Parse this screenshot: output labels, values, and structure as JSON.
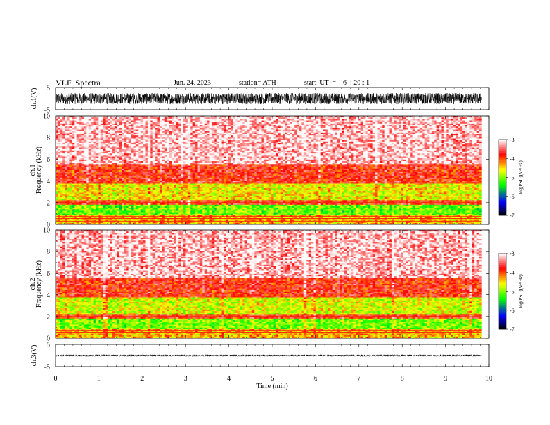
{
  "header": {
    "title": "VLF  Spectra",
    "date": "Jun. 24, 2023",
    "station": "station= ATH",
    "start": "start  UT  =    6  : 20 : 1"
  },
  "chart_data": [
    {
      "type": "line",
      "panel": "ch1-waveform",
      "ylabel": "ch.1(V)",
      "ylim": [
        -5,
        5
      ],
      "yticks": [
        "5",
        "-5"
      ],
      "description_values": {
        "amplitude_range": [
          -2.5,
          2.5
        ]
      }
    },
    {
      "type": "heatmap",
      "panel": "ch1-spectrogram",
      "ylabel": "ch.1 Frequency  (kHz)",
      "ylim": [
        0,
        10
      ],
      "yticks": [
        "10",
        "8",
        "6",
        "4",
        "2",
        "0"
      ],
      "colorbar": {
        "label": "log(PSD)(V²/Hz)",
        "range": [
          -7,
          -3
        ],
        "ticks": [
          "-3",
          "-4",
          "-5",
          "-6",
          "-7"
        ]
      },
      "bands": [
        {
          "from": 5.6,
          "to": 10.0,
          "level": -3.2
        },
        {
          "from": 3.8,
          "to": 5.6,
          "level": -3.8
        },
        {
          "from": 2.2,
          "to": 3.8,
          "level": -4.6
        },
        {
          "from": 1.8,
          "to": 2.2,
          "level": -3.8
        },
        {
          "from": 0.9,
          "to": 1.8,
          "level": -5.1
        },
        {
          "from": 0.0,
          "to": 0.9,
          "level": -4.4
        }
      ]
    },
    {
      "type": "heatmap",
      "panel": "ch2-spectrogram",
      "ylabel": "ch.2 Frequency  (kHz)",
      "ylim": [
        0,
        10
      ],
      "yticks": [
        "10",
        "8",
        "6",
        "4",
        "2",
        "0"
      ],
      "colorbar": {
        "label": "log(PSD)(V²/Hz)",
        "range": [
          -7,
          -3
        ],
        "ticks": [
          "-3",
          "-4",
          "-5",
          "-6",
          "-7"
        ]
      },
      "bands": [
        {
          "from": 5.6,
          "to": 10.0,
          "level": -3.2
        },
        {
          "from": 3.8,
          "to": 5.6,
          "level": -3.8
        },
        {
          "from": 2.2,
          "to": 3.8,
          "level": -4.7
        },
        {
          "from": 1.8,
          "to": 2.2,
          "level": -3.8
        },
        {
          "from": 0.9,
          "to": 1.8,
          "level": -5.0
        },
        {
          "from": 0.0,
          "to": 0.9,
          "level": -4.4
        }
      ]
    },
    {
      "type": "line",
      "panel": "ch3-waveform",
      "ylabel": "ch.3(V)",
      "ylim": [
        -5,
        5
      ],
      "yticks": [
        "5",
        "-5"
      ],
      "description_values": {
        "amplitude_range": [
          -0.4,
          0.4
        ],
        "offset": 0
      }
    }
  ],
  "xaxis": {
    "label": "Time  (min)",
    "xlim": [
      0,
      10
    ],
    "ticks": [
      "0",
      "1",
      "2",
      "3",
      "4",
      "5",
      "6",
      "7",
      "8",
      "9",
      "10"
    ],
    "data_end": 9.83
  },
  "colors": {
    "high": "#ff0000",
    "mid": "#ffff00",
    "low": "#00ff00",
    "lower": "#0000ff",
    "lowest": "#000000"
  }
}
